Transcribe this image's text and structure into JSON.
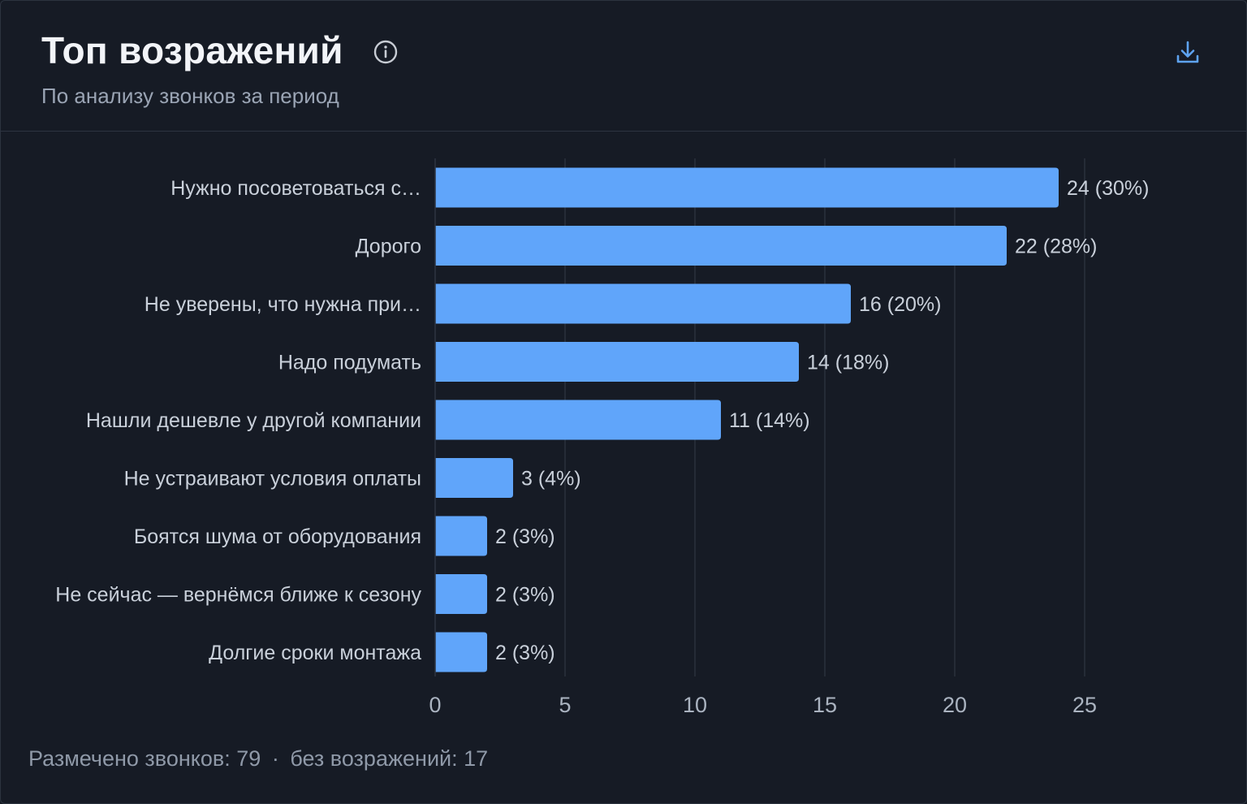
{
  "header": {
    "title": "Топ возражений",
    "subtitle": "По анализу звонков за период",
    "info_icon": "info-circle-icon",
    "download_icon": "download-icon"
  },
  "chart_data": {
    "type": "bar",
    "orientation": "horizontal",
    "categories": [
      "Нужно посоветоваться с…",
      "Дорого",
      "Не уверены, что нужна при…",
      "Надо подумать",
      "Нашли дешевле у другой компании",
      "Не устраивают условия оплаты",
      "Боятся шума от оборудования",
      "Не сейчас — вернёмся ближе к сезону",
      "Долгие сроки монтажа"
    ],
    "values": [
      24,
      22,
      16,
      14,
      11,
      3,
      2,
      2,
      2
    ],
    "value_labels": [
      "24 (30%)",
      "22 (28%)",
      "16 (20%)",
      "14 (18%)",
      "11 (14%)",
      "3 (4%)",
      "2 (3%)",
      "2 (3%)",
      "2 (3%)"
    ],
    "xlim": [
      0,
      25
    ],
    "xticks": [
      0,
      5,
      10,
      15,
      20,
      25
    ],
    "grid": true,
    "colors": {
      "bar": "#60a5fa",
      "grid": "#2a313d",
      "label": "#c9d0da",
      "tick": "#aab3c0"
    }
  },
  "footer": {
    "marked_label": "Размечено звонков:",
    "marked_value": "79",
    "separator": "·",
    "no_objection_label": "без возражений:",
    "no_objection_value": "17"
  }
}
